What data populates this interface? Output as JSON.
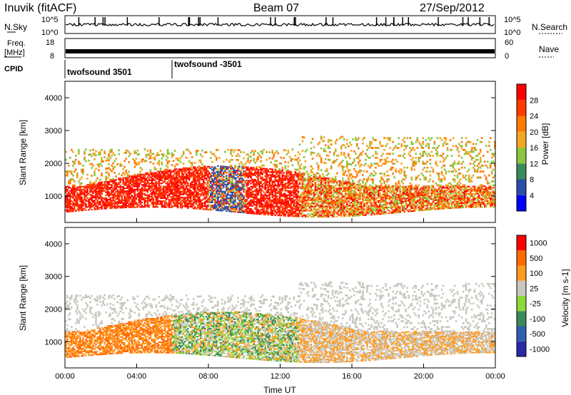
{
  "header": {
    "station": "Inuvik (fitACF)",
    "beam": "Beam 07",
    "date": "27/Sep/2012"
  },
  "panels": {
    "nsky": {
      "label": "N.Sky",
      "ticks": [
        "10^5",
        "10^0"
      ],
      "right_label": "N.Search",
      "right_ticks": [
        "10^5",
        "10^0"
      ]
    },
    "freq": {
      "label_line1": "Freq.",
      "label_line2": "[MHz]",
      "ticks": [
        "18",
        "8"
      ],
      "right_label": "Nave",
      "right_ticks": [
        "60",
        "0"
      ]
    },
    "cpid": {
      "label": "CPID",
      "programs": [
        "twofsound 3501",
        "twofsound -3501"
      ]
    }
  },
  "colors": {
    "power_scale": [
      "#0000ff",
      "#2a4ea8",
      "#3a8a5a",
      "#8cc63f",
      "#f5a623",
      "#ff7a00",
      "#ff3a00",
      "#ff0000"
    ],
    "velocity_scale": [
      "#2a2aa8",
      "#2e5fb0",
      "#3a8a5a",
      "#8cd93a",
      "#c8c8c0",
      "#ff9a20",
      "#ff6a00",
      "#ff0000"
    ]
  },
  "chart_data": [
    {
      "type": "heatmap",
      "name": "power",
      "ylabel": "Slant Range [km]",
      "yticks": [
        1000,
        2000,
        3000,
        4000
      ],
      "ylim": [
        200,
        4500
      ],
      "xlim_hours": [
        0,
        24
      ],
      "xticks": [
        "00:00",
        "04:00",
        "08:00",
        "12:00",
        "16:00",
        "20:00",
        "00:00"
      ],
      "colorbar": {
        "label": "Power [dB]",
        "ticks": [
          "4",
          "8",
          "12",
          "16",
          "20",
          "24",
          "28"
        ]
      }
    },
    {
      "type": "heatmap",
      "name": "velocity",
      "ylabel": "Slant Range [km]",
      "yticks": [
        1000,
        2000,
        3000,
        4000
      ],
      "ylim": [
        200,
        4500
      ],
      "xlim_hours": [
        0,
        24
      ],
      "xticks": [
        "00:00",
        "04:00",
        "08:00",
        "12:00",
        "16:00",
        "20:00",
        "00:00"
      ],
      "xlabel": "Time UT",
      "colorbar": {
        "label": "Velocity [m s-1]",
        "ticks": [
          "1000",
          "500",
          "100",
          "25",
          "-25",
          "-100",
          "-500",
          "-1000"
        ]
      }
    }
  ]
}
